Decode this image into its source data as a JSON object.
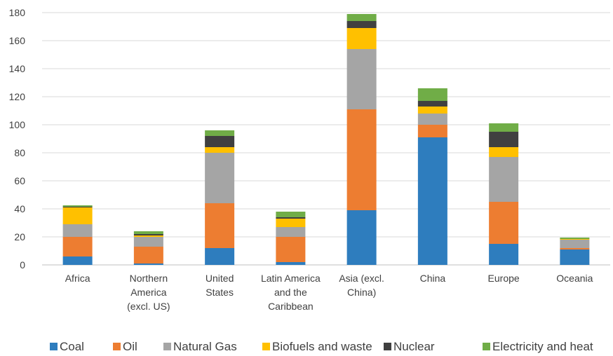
{
  "chart_data": {
    "type": "bar",
    "stacked": true,
    "categories": [
      [
        "Africa"
      ],
      [
        "Northern",
        "America",
        "(excl. US)"
      ],
      [
        "United",
        "States"
      ],
      [
        "Latin America",
        "and the",
        "Caribbean"
      ],
      [
        "Asia (excl.",
        "China)"
      ],
      [
        "China"
      ],
      [
        "Europe"
      ],
      [
        "Oceania"
      ]
    ],
    "series": [
      {
        "name": "Coal",
        "color": "#2E7DBE",
        "values": [
          6,
          1,
          12,
          2,
          39,
          91,
          15,
          11
        ]
      },
      {
        "name": "Oil",
        "color": "#ED7D31",
        "values": [
          14,
          12,
          32,
          18,
          72,
          9,
          30,
          1
        ]
      },
      {
        "name": "Natural Gas",
        "color": "#A5A5A5",
        "values": [
          9,
          7,
          36,
          7,
          43,
          8,
          32,
          6
        ]
      },
      {
        "name": "Biofuels and waste",
        "color": "#FFC000",
        "values": [
          12,
          1,
          4,
          6,
          15,
          5,
          7,
          0.5
        ]
      },
      {
        "name": "Nuclear",
        "color": "#404040",
        "values": [
          0.5,
          1,
          8,
          1,
          5,
          4,
          11,
          0
        ]
      },
      {
        "name": "Electricity and heat",
        "color": "#70AD47",
        "values": [
          1,
          2,
          4,
          4,
          5,
          9,
          6,
          1
        ]
      }
    ],
    "yticks": [
      "0",
      "20",
      "40",
      "60",
      "80",
      "100",
      "120",
      "140",
      "160",
      "180"
    ],
    "ylim": [
      0,
      180
    ],
    "grid": true,
    "legend": "bottom"
  }
}
